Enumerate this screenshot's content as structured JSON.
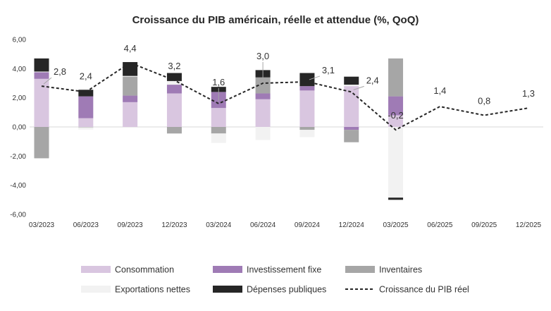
{
  "chart_data": {
    "type": "bar",
    "title": "Croissance du PIB américain, réelle et attendue (%, QoQ)",
    "categories": [
      "03/2023",
      "06/2023",
      "09/2023",
      "12/2023",
      "03/2024",
      "06/2024",
      "09/2024",
      "12/2024",
      "03/2025",
      "06/2025",
      "09/2025",
      "12/2025"
    ],
    "ylim": [
      -6,
      6
    ],
    "yticks": [
      "6,00",
      "4,00",
      "2,00",
      "0,00",
      "-2,00",
      "-4,00",
      "-6,00"
    ],
    "ytick_values": [
      6,
      4,
      2,
      0,
      -2,
      -4,
      -6
    ],
    "grid": false,
    "legend_position": "bottom",
    "stacked": true,
    "series": [
      {
        "name": "Consommation",
        "color": "#d9c6e0",
        "values": [
          3.3,
          0.6,
          1.7,
          2.3,
          1.3,
          1.9,
          2.5,
          2.8,
          0.8,
          null,
          null,
          null
        ]
      },
      {
        "name": "Investissement fixe",
        "color": "#9f7bb5",
        "values": [
          0.45,
          1.5,
          0.45,
          0.6,
          1.1,
          0.4,
          0.3,
          -0.2,
          1.3,
          null,
          null,
          null
        ]
      },
      {
        "name": "Inventaires",
        "color": "#a6a6a6",
        "values": [
          -2.15,
          -0.03,
          1.3,
          -0.45,
          -0.45,
          1.1,
          -0.2,
          -0.85,
          2.6,
          null,
          null,
          null
        ]
      },
      {
        "name": "Exportations nettes",
        "color": "#f2f2f2",
        "values": [
          0.05,
          -0.15,
          0.05,
          0.25,
          -0.65,
          -0.9,
          -0.5,
          0.1,
          -4.85,
          null,
          null,
          null
        ]
      },
      {
        "name": "Dépenses publiques",
        "color": "#262626",
        "values": [
          0.9,
          0.45,
          0.95,
          0.55,
          0.35,
          0.5,
          0.9,
          0.55,
          -0.15,
          null,
          null,
          null
        ]
      }
    ],
    "line": {
      "name": "Croissance du PIB réel",
      "color": "#262626",
      "values": [
        2.8,
        2.4,
        4.4,
        3.2,
        1.6,
        3.0,
        3.1,
        2.4,
        -0.2,
        1.4,
        0.8,
        1.3
      ],
      "labels": [
        "2,8",
        "2,4",
        "4,4",
        "3,2",
        "1,6",
        "3,0",
        "3,1",
        "2,4",
        "-0,2",
        "1,4",
        "0,8",
        "1,3"
      ]
    }
  }
}
